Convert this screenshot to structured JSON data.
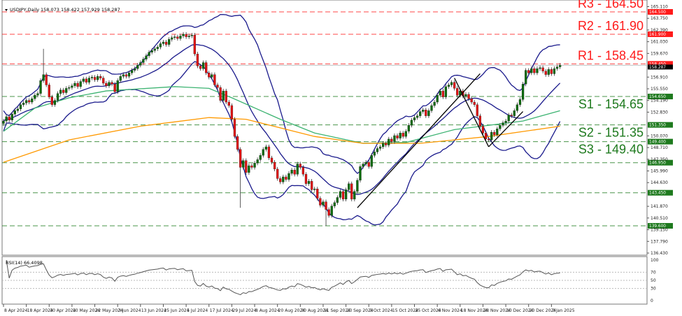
{
  "header": {
    "symbol": "USDJPY,Daily",
    "ohlc": "158.073 158.422 157.929 158.287"
  },
  "colors": {
    "resistance": "#ff1a1a",
    "support": "#1e7a1e",
    "bull_candle": "#0a6b0a",
    "bear_candle": "#e01010",
    "bollinger": "#1a1a8c",
    "ma_green": "#3cb371",
    "ma_orange": "#ff9900",
    "trendline": "#000000",
    "rsi_line": "#555555"
  },
  "chart_data": [
    {
      "type": "candlestick",
      "title": "USDJPY,Daily",
      "ylim": [
        136.43,
        165.11
      ],
      "grid": false,
      "y_tick_labels": [
        "165.110",
        "163.750",
        "162.390",
        "161.030",
        "159.670",
        "156.910",
        "155.550",
        "154.190",
        "152.830",
        "150.070",
        "148.710",
        "147.350",
        "145.990",
        "144.630",
        "141.870",
        "140.510",
        "139.150",
        "137.790",
        "136.430"
      ],
      "x_tick_labels": [
        "8 Apr 2024",
        "18 Apr 2024",
        "30 Apr 2024",
        "10 May 2024",
        "22 May 2024",
        "3 Jun 2024",
        "13 Jun 2024",
        "25 Jun 2024",
        "5 Jul 2024",
        "17 Jul 2024",
        "29 Jul 2024",
        "8 Aug 2024",
        "20 Aug 2024",
        "30 Aug 2024",
        "11 Sep 2024",
        "23 Sep 2024",
        "3 Oct 2024",
        "15 Oct 2024",
        "25 Oct 2024",
        "6 Nov 2024",
        "18 Nov 2024",
        "28 Nov 2024",
        "10 Dec 2024",
        "20 Dec 2024",
        "3 Jan 2025"
      ],
      "closes": [
        151.8,
        152.3,
        151.9,
        152.6,
        153.0,
        153.2,
        153.7,
        153.9,
        154.2,
        154.0,
        154.4,
        154.8,
        155.0,
        156.5,
        157.2,
        156.0,
        154.6,
        153.7,
        154.2,
        155.0,
        155.4,
        155.1,
        155.6,
        155.7,
        155.9,
        156.2,
        155.8,
        156.4,
        156.7,
        156.3,
        156.8,
        156.9,
        156.6,
        157.0,
        156.8,
        156.2,
        155.9,
        156.3,
        156.1,
        155.2,
        156.5,
        157.0,
        157.2,
        157.0,
        157.4,
        157.7,
        157.9,
        158.3,
        158.6,
        159.0,
        159.4,
        159.8,
        160.0,
        160.2,
        160.4,
        160.8,
        161.0,
        160.7,
        161.3,
        161.5,
        161.6,
        161.4,
        161.7,
        161.9,
        161.6,
        161.7,
        161.8,
        159.6,
        158.2,
        157.9,
        158.6,
        157.4,
        156.9,
        157.2,
        156.0,
        155.7,
        154.2,
        155.3,
        154.0,
        153.6,
        152.0,
        150.0,
        148.5,
        146.4,
        147.2,
        145.8,
        146.6,
        146.4,
        146.9,
        147.3,
        147.8,
        148.5,
        148.8,
        147.5,
        147.0,
        146.2,
        145.1,
        144.7,
        145.3,
        145.0,
        145.7,
        146.1,
        145.6,
        146.8,
        146.4,
        145.6,
        144.5,
        144.8,
        143.8,
        143.9,
        142.8,
        142.0,
        142.4,
        141.5,
        140.8,
        141.9,
        142.3,
        142.9,
        143.6,
        142.7,
        143.8,
        144.5,
        142.7,
        143.6,
        144.9,
        146.5,
        146.8,
        147.0,
        146.5,
        147.8,
        148.2,
        148.6,
        148.8,
        149.2,
        149.0,
        149.7,
        149.4,
        150.1,
        149.8,
        150.4,
        150.0,
        150.6,
        151.3,
        151.9,
        152.2,
        152.4,
        152.9,
        153.1,
        152.4,
        153.0,
        153.6,
        154.0,
        154.8,
        155.3,
        154.6,
        155.8,
        156.0,
        156.3,
        155.6,
        154.8,
        155.3,
        154.7,
        154.9,
        154.4,
        154.0,
        153.7,
        152.4,
        151.2,
        150.4,
        149.7,
        149.6,
        150.5,
        150.2,
        150.9,
        151.3,
        151.6,
        151.8,
        152.5,
        152.4,
        153.0,
        153.7,
        154.3,
        156.1,
        157.7,
        157.4,
        157.9,
        157.4,
        157.9,
        158.0,
        157.6,
        157.2,
        157.8,
        157.3,
        157.9,
        158.1,
        158.287
      ],
      "high_overrides": {
        "14": 160.2
      },
      "low_overrides": {
        "83": 141.7,
        "113": 139.6
      },
      "last_price": "158.287",
      "moving_average_green": [
        [
          0,
          150.6
        ],
        [
          11,
          153.3
        ],
        [
          23,
          154.5
        ],
        [
          36,
          155.3
        ],
        [
          60,
          155.8
        ],
        [
          72,
          155.6
        ],
        [
          80,
          154.5
        ],
        [
          97,
          152.0
        ],
        [
          109,
          150.4
        ],
        [
          126,
          149.2
        ],
        [
          141,
          149.3
        ],
        [
          158,
          150.8
        ],
        [
          170,
          151.3
        ],
        [
          182,
          151.8
        ],
        [
          195,
          153.0
        ]
      ],
      "moving_average_orange": [
        [
          0,
          147.0
        ],
        [
          23,
          149.6
        ],
        [
          48,
          151.2
        ],
        [
          72,
          152.2
        ],
        [
          85,
          152.0
        ],
        [
          109,
          150.0
        ],
        [
          126,
          149.2
        ],
        [
          146,
          149.2
        ],
        [
          170,
          150.0
        ],
        [
          195,
          151.2
        ]
      ],
      "bollinger": {
        "period": 20,
        "deviations": 2
      },
      "trendlines": [
        {
          "from": [
            124,
            141.7
          ],
          "to": [
            167,
            157.3
          ]
        },
        {
          "from": [
            158,
            156.8
          ],
          "to": [
            170,
            148.8
          ]
        },
        {
          "from": [
            170,
            148.8
          ],
          "to": [
            182,
            152.9
          ]
        }
      ],
      "levels": [
        {
          "label": "R3 - 164.50",
          "price": 164.5,
          "tag": "164.500",
          "kind": "resistance"
        },
        {
          "label": "R2 - 161.90",
          "price": 161.9,
          "tag": "161.900",
          "kind": "resistance"
        },
        {
          "label": "R1 - 158.45",
          "price": 158.45,
          "tag": "158.450",
          "kind": "resistance"
        },
        {
          "label": "S1 - 154.65",
          "price": 154.65,
          "tag": "154.650",
          "kind": "support"
        },
        {
          "label": "S2 - 151.35",
          "price": 151.35,
          "tag": "151.350",
          "kind": "support"
        },
        {
          "label": "S3 - 149.40",
          "price": 149.4,
          "tag": "149.400",
          "kind": "support"
        },
        {
          "label": "",
          "price": 146.95,
          "tag": "146.950",
          "kind": "support"
        },
        {
          "label": "",
          "price": 143.45,
          "tag": "143.450",
          "kind": "support"
        },
        {
          "label": "",
          "price": 139.6,
          "tag": "139.600",
          "kind": "support"
        }
      ]
    },
    {
      "type": "line",
      "title": "RSI(14) 66.4098",
      "period": 14,
      "ylim": [
        0,
        100
      ],
      "y_tick_labels": [
        "100",
        "70",
        "50",
        "30",
        "0"
      ],
      "levels": [
        70,
        50,
        30
      ]
    }
  ]
}
